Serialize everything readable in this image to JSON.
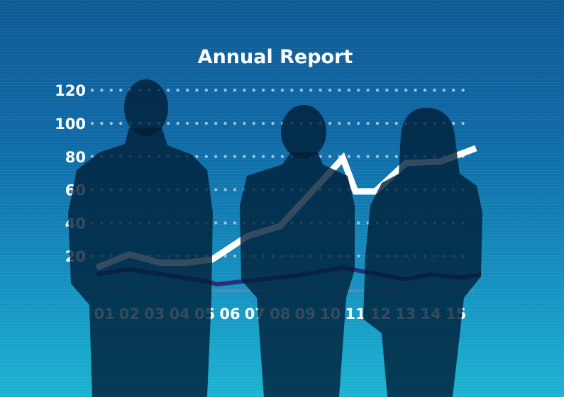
{
  "chart_data": {
    "type": "line",
    "title": "Annual Report",
    "xlabel": "",
    "ylabel": "",
    "categories": [
      "01",
      "02",
      "03",
      "04",
      "05",
      "06",
      "07",
      "08",
      "09",
      "10",
      "11",
      "12",
      "13",
      "14",
      "15"
    ],
    "yticks": [
      "120",
      "100",
      "80",
      "60",
      "40",
      "20"
    ],
    "ylim": [
      0,
      120
    ],
    "xlim": [
      0.5,
      16
    ],
    "grid": "dotted horizontal",
    "legend": "none",
    "series": [
      {
        "color": "#ffffff",
        "x": [
          0.7,
          2.0,
          3.2,
          4.3,
          5.3,
          6.7,
          8.0,
          10.5,
          11.0,
          11.8,
          13.0,
          14.4,
          15.8
        ],
        "y": [
          13,
          21,
          16,
          16,
          18,
          32,
          38,
          79,
          59,
          59,
          76,
          77,
          85
        ]
      },
      {
        "color": "#2a2f78",
        "x": [
          0.7,
          2.0,
          5.0,
          5.5,
          8.5,
          10.5,
          13.0,
          14.0,
          15.2,
          16.0
        ],
        "y": [
          9,
          12,
          5,
          3,
          8,
          13,
          6,
          9,
          7,
          9
        ]
      }
    ]
  },
  "colors": {
    "background_top": "#0f5a93",
    "background_bottom": "#1cb3d2",
    "silhouette": "#001e37"
  }
}
